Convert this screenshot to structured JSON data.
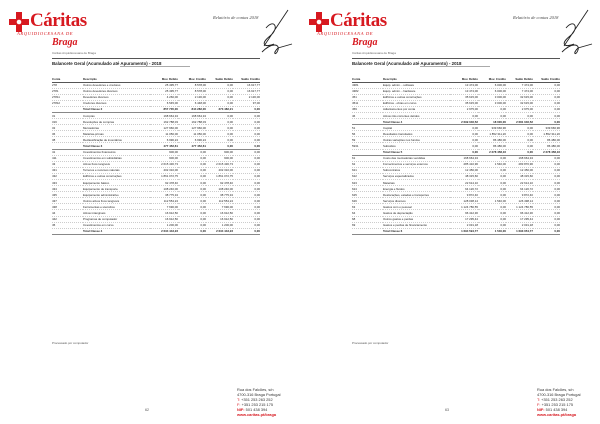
{
  "brand": {
    "name": "Cáritas",
    "subtitle": "ARQUIDIOCESANA DE",
    "city": "Braga",
    "color": "#d71920"
  },
  "report_label": "Relatório de contas 2018",
  "org_line": "Cáritas Arquidiocesana de Braga",
  "title": "Balancete Geral (Acumulado até Apuramento) - 2018",
  "columns": [
    "Conta",
    "Descrição",
    "Mov. Débito",
    "Mov. Crédito",
    "Saldo Débito",
    "Saldo Crédito"
  ],
  "footer": {
    "street": "Rua dos Falcões, s/n",
    "postal": "4700-316 Braga Portugal",
    "phone_label": "T:",
    "phone": "+351 253 263 252",
    "fax_label": "F:",
    "fax": "+351 253 215 175",
    "nif_label": "NIF:",
    "nif": "501 438 394",
    "web": "www.caritas.pt/braga"
  },
  "pages": [
    {
      "page_number": "62",
      "rows": [
        [
          "278",
          "Outros devedores e credores",
          "25 495,77",
          "8 578,00",
          "0,00",
          "16 917,77"
        ],
        [
          "2781",
          "Outros devedores diversos",
          "25 495,77",
          "8 578,00",
          "0,00",
          "16 917,77"
        ],
        [
          "27811",
          "Devedores diversos",
          "4 260,00",
          "2 130,00",
          "0,00",
          "2 130,00"
        ],
        [
          "27812",
          "Credores diversos",
          "6 545,00",
          "6 448,00",
          "0,00",
          "97,00"
        ],
        [
          "",
          "Total Classe 2",
          "857 735,00",
          "844 282,00",
          "373 482,21",
          "0,00"
        ],
        [
          "31",
          "Compras",
          "168 664,34",
          "168 664,34",
          "0,00",
          "0,00"
        ],
        [
          "316",
          "Devoluções de compras",
          "162 788,03",
          "162 788,03",
          "0,00",
          "0,00"
        ],
        [
          "32",
          "Mercadorias",
          "127 960,00",
          "127 960,00",
          "0,00",
          "0,00"
        ],
        [
          "36",
          "Matérias-primas",
          "11 050,00",
          "11 050,00",
          "0,00",
          "0,00"
        ],
        [
          "38",
          "Reclassificação de inventários",
          "6 990,24",
          "6 990,24",
          "0,00",
          "0,00"
        ],
        [
          "",
          "Total Classe 3",
          "477 452,61",
          "477 452,61",
          "0,00",
          "0,00"
        ],
        [
          "41",
          "Investimentos financeiros",
          "900,00",
          "0,00",
          "900,00",
          "0,00"
        ],
        [
          "411",
          "Investimentos em subsidiárias",
          "900,00",
          "0,00",
          "900,00",
          "0,00"
        ],
        [
          "43",
          "Ativos fixos tangíveis",
          "2 615 430,73",
          "0,00",
          "2 615 430,73",
          "0,00"
        ],
        [
          "431",
          "Terrenos e recursos naturais",
          "402 310,00",
          "0,00",
          "402 310,00",
          "0,00"
        ],
        [
          "432",
          "Edifícios e outras construções",
          "1 861 072,75",
          "0,00",
          "1 861 072,75",
          "0,00"
        ],
        [
          "433",
          "Equipamento básico",
          "92 478,40",
          "0,00",
          "92 478,40",
          "0,00"
        ],
        [
          "434",
          "Equipamento de transporte",
          "108 240,00",
          "0,00",
          "108 240,00",
          "0,00"
        ],
        [
          "435",
          "Equipamento administrativo",
          "38 775,34",
          "0,00",
          "38 775,34",
          "0,00"
        ],
        [
          "437",
          "Outros ativos fixos tangíveis",
          "112 554,24",
          "0,00",
          "112 554,24",
          "0,00"
        ],
        [
          "438",
          "Ferramentas e utensílios",
          "7 690,00",
          "0,00",
          "7 690,00",
          "0,00"
        ],
        [
          "44",
          "Ativos intangíveis",
          "16 912,50",
          "0,00",
          "16 912,50",
          "0,00"
        ],
        [
          "442",
          "Programas de computador",
          "16 912,50",
          "0,00",
          "16 912,50",
          "0,00"
        ],
        [
          "45",
          "Investimentos em curso",
          "1 200,00",
          "0,00",
          "1 200,00",
          "0,00"
        ],
        [
          "",
          "Total Classe 4",
          "2 634 443,23",
          "0,00",
          "2 634 443,23",
          "0,00"
        ]
      ]
    },
    {
      "page_number": "63",
      "rows": [
        [
          "4381",
          "Equip. admin. - software",
          "13 474,00",
          "6 000,00",
          "7 474,00",
          "0,00"
        ],
        [
          "4382",
          "Equip. admin. - hardware",
          "13 474,00",
          "6 000,00",
          "7 474,00",
          "0,00"
        ],
        [
          "451",
          "Edifícios e outras construções",
          "35 615,00",
          "3 000,00",
          "32 615,00",
          "0,00"
        ],
        [
          "4511",
          "Edifícios - obras em curso",
          "35 615,00",
          "3 000,00",
          "32 615,00",
          "0,00"
        ],
        [
          "459",
          "Adiantamentos por conta",
          "2 975,00",
          "0,00",
          "2 975,00",
          "0,00"
        ],
        [
          "46",
          "Ativos não correntes detidos",
          "0,00",
          "0,00",
          "0,00",
          "0,00"
        ],
        [
          "",
          "Total Classe 4",
          "2 699 046,52",
          "18 000,00",
          "2 681 046,52",
          "0,00"
        ],
        [
          "51",
          "Capital",
          "0,00",
          "339 666,96",
          "0,00",
          "339 666,96"
        ],
        [
          "56",
          "Resultados transitados",
          "0,00",
          "1 852 311,20",
          "0,00",
          "1 852 311,20"
        ],
        [
          "59",
          "Outras variações nos fundos",
          "0,00",
          "86 480,00",
          "0,00",
          "86 480,00"
        ],
        [
          "5931",
          "Subsídios",
          "0,00",
          "86 480,00",
          "0,00",
          "86 480,00"
        ],
        [
          "",
          "Total Classe 5",
          "0,00",
          "2 278 458,16",
          "0,00",
          "2 278 458,16"
        ],
        [
          "61",
          "Custo das mercadorias vendidas",
          "168 664,34",
          "0,00",
          "168 664,34",
          "0,00"
        ],
        [
          "62",
          "Fornecimentos e serviços externos",
          "285 410,96",
          "1 540,00",
          "283 870,96",
          "0,00"
        ],
        [
          "621",
          "Subcontratos",
          "12 450,00",
          "0,00",
          "12 450,00",
          "0,00"
        ],
        [
          "622",
          "Serviços especializados",
          "48 315,60",
          "0,00",
          "48 315,60",
          "0,00"
        ],
        [
          "623",
          "Materiais",
          "22 614,10",
          "0,00",
          "22 614,10",
          "0,00"
        ],
        [
          "624",
          "Energia e fluidos",
          "64 120,72",
          "0,00",
          "64 120,72",
          "0,00"
        ],
        [
          "625",
          "Deslocações, estadas e transportes",
          "9 872,40",
          "0,00",
          "9 872,40",
          "0,00"
        ],
        [
          "626",
          "Serviços diversos",
          "128 038,14",
          "1 540,00",
          "126 498,14",
          "0,00"
        ],
        [
          "63",
          "Gastos com o pessoal",
          "1 124 780,55",
          "0,00",
          "1 124 780,55",
          "0,00"
        ],
        [
          "64",
          "Gastos de depreciação",
          "96 412,30",
          "0,00",
          "96 412,30",
          "0,00"
        ],
        [
          "68",
          "Outros gastos e perdas",
          "17 295,44",
          "0,00",
          "17 295,44",
          "0,00"
        ],
        [
          "69",
          "Gastos e perdas de financiamento",
          "2 031,18",
          "0,00",
          "2 031,18",
          "0,00"
        ],
        [
          "",
          "Total Classe 6",
          "1 694 594,77",
          "1 540,00",
          "1 693 054,77",
          "0,00"
        ]
      ]
    }
  ],
  "note": "Processado por computador"
}
